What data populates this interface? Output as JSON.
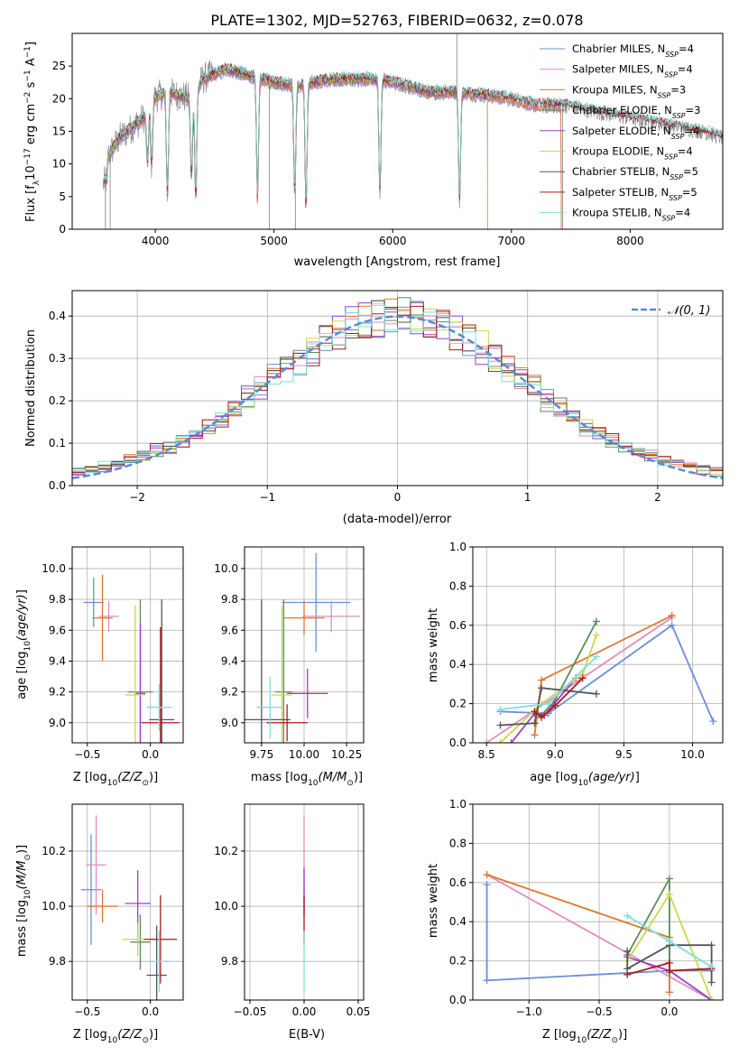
{
  "title": "PLATE=1302, MJD=52763, FIBERID=0632, z=0.078",
  "colors": {
    "chabrier_miles": "#6a8fd8",
    "salpeter_miles": "#e38bc2",
    "kroupa_miles": "#e0772a",
    "chabrier_elodie": "#5e8a5e",
    "salpeter_elodie": "#9b3fc8",
    "kroupa_elodie": "#c9d84a",
    "chabrier_stelib": "#555555",
    "salpeter_stelib": "#b01818",
    "kroupa_stelib": "#7fdde0",
    "data": "#808080",
    "grid": "#b0b0b0"
  },
  "legend": [
    {
      "key": "chabrier_miles",
      "text": "Chabrier MILES, N",
      "sub": "SSP",
      "tail": "=4"
    },
    {
      "key": "salpeter_miles",
      "text": "Salpeter MILES, N",
      "sub": "SSP",
      "tail": "=4"
    },
    {
      "key": "kroupa_miles",
      "text": "Kroupa MILES, N",
      "sub": "SSP",
      "tail": "=3"
    },
    {
      "key": "chabrier_elodie",
      "text": "Chabrier ELODIE, N",
      "sub": "SSP",
      "tail": "=3"
    },
    {
      "key": "salpeter_elodie",
      "text": "Salpeter ELODIE, N",
      "sub": "SSP",
      "tail": "=4"
    },
    {
      "key": "kroupa_elodie",
      "text": "Kroupa ELODIE, N",
      "sub": "SSP",
      "tail": "=4"
    },
    {
      "key": "chabrier_stelib",
      "text": "Chabrier STELIB, N",
      "sub": "SSP",
      "tail": "=5"
    },
    {
      "key": "salpeter_stelib",
      "text": "Salpeter STELIB, N",
      "sub": "SSP",
      "tail": "=5"
    },
    {
      "key": "kroupa_stelib",
      "text": "Kroupa STELIB, N",
      "sub": "SSP",
      "tail": "=4"
    }
  ],
  "labels": {
    "spec_xlabel": "wavelength [Angstrom, rest frame]",
    "spec_ylabel": "Flux [f",
    "spec_ylabel_sub": "λ",
    "spec_ylabel_mid": "10",
    "spec_ylabel_sup1": "−17",
    "spec_ylabel_mid2": " erg cm",
    "spec_ylabel_sup2": "−2",
    "spec_ylabel_mid3": " s",
    "spec_ylabel_sup3": "−1",
    "spec_ylabel_mid4": " A",
    "spec_ylabel_sup4": "−1",
    "spec_ylabel_end": "]",
    "hist_xlabel": "(data-model)/error",
    "hist_ylabel": "Normed distribution",
    "hist_legend": "𝒩(0, 1)",
    "age_label_pre": "age  [log",
    "age_label_sub": "10",
    "age_label_it": "(age/yr)",
    "age_label_end": "]",
    "z_label_pre": "Z [log",
    "z_label_sub": "10",
    "z_label_it": "(Z/Z",
    "z_label_sun": "⊙",
    "z_label_end": ")]",
    "mass_label_pre": "mass [log",
    "mass_label_sub": "10",
    "mass_label_it": "(M/M",
    "mass_label_sun": "⊙",
    "mass_label_end": ")]",
    "ebv_label": "E(B-V)",
    "mass_weight": "mass weight"
  },
  "chart_data": [
    {
      "name": "spectrum",
      "type": "line",
      "title": "PLATE=1302, MJD=52763, FIBERID=0632, z=0.078",
      "xlabel": "wavelength [Angstrom, rest frame]",
      "ylabel": "Flux [fλ10^-17 erg cm^-2 s^-1 A^-1]",
      "xlim": [
        3300,
        8780
      ],
      "ylim": [
        0,
        30
      ],
      "xticks": [
        4000,
        5000,
        6000,
        7000,
        8000
      ],
      "yticks": [
        0,
        5,
        10,
        15,
        20,
        25
      ],
      "grid": false,
      "legend": "upper right",
      "continuum": [
        [
          3560,
          10
        ],
        [
          3700,
          14
        ],
        [
          3900,
          17
        ],
        [
          3980,
          20
        ],
        [
          4100,
          21
        ],
        [
          4300,
          20
        ],
        [
          4400,
          23
        ],
        [
          4600,
          24.5
        ],
        [
          4800,
          23.5
        ],
        [
          5000,
          22.5
        ],
        [
          5200,
          22
        ],
        [
          5500,
          23
        ],
        [
          5800,
          23
        ],
        [
          6000,
          22.5
        ],
        [
          6300,
          21
        ],
        [
          6500,
          21
        ],
        [
          6800,
          20.5
        ],
        [
          7000,
          20
        ],
        [
          7200,
          19
        ],
        [
          7450,
          19
        ],
        [
          7700,
          18
        ],
        [
          8000,
          17
        ],
        [
          8300,
          16
        ],
        [
          8600,
          15
        ],
        [
          8780,
          14
        ]
      ]
    },
    {
      "name": "residuals",
      "type": "bar",
      "xlabel": "(data-model)/error",
      "ylabel": "Normed distribution",
      "xlim": [
        -2.5,
        2.5
      ],
      "ylim": [
        0,
        0.46
      ],
      "xticks": [
        -2,
        -1,
        0,
        1,
        2
      ],
      "yticks": [
        0.0,
        0.1,
        0.2,
        0.3,
        0.4
      ],
      "grid": true,
      "reference_curve": "N(0,1)",
      "legend": "upper right"
    },
    {
      "name": "age_vs_Z",
      "type": "scatter",
      "xlabel": "Z [log10(Z/Z⊙)]",
      "ylabel": "age  [log10(age/yr)]",
      "xlim": [
        -0.62,
        0.26
      ],
      "ylim": [
        8.87,
        10.14
      ],
      "xticks": [
        -0.5,
        0.0
      ],
      "yticks": [
        9.0,
        9.2,
        9.4,
        9.6,
        9.8,
        10.0
      ],
      "grid": true,
      "points": [
        {
          "key": "chabrier_miles",
          "x": -0.45,
          "xerr": 0.08,
          "y": 9.78,
          "yerr": 0.16
        },
        {
          "key": "salpeter_miles",
          "x": -0.33,
          "xerr": 0.08,
          "y": 9.69,
          "yerr": 0.1
        },
        {
          "key": "kroupa_miles",
          "x": -0.38,
          "xerr": 0.08,
          "y": 9.68,
          "yerr": 0.28
        },
        {
          "key": "chabrier_elodie",
          "x": -0.08,
          "xerr": 0.1,
          "y": 9.2,
          "yerr": 0.6
        },
        {
          "key": "salpeter_elodie",
          "x": -0.08,
          "xerr": 0.04,
          "y": 9.19,
          "yerr": 0.45
        },
        {
          "key": "kroupa_elodie",
          "x": -0.12,
          "xerr": 0.08,
          "y": 9.18,
          "yerr": 0.58
        },
        {
          "key": "chabrier_stelib",
          "x": 0.09,
          "xerr": 0.1,
          "y": 9.02,
          "yerr": 0.78
        },
        {
          "key": "salpeter_stelib",
          "x": 0.08,
          "xerr": 0.15,
          "y": 9.0,
          "yerr": 0.62
        },
        {
          "key": "kroupa_stelib",
          "x": 0.07,
          "xerr": 0.1,
          "y": 9.1,
          "yerr": 0.15
        }
      ]
    },
    {
      "name": "age_vs_mass",
      "type": "scatter",
      "xlabel": "mass [log10(M/M⊙)]",
      "ylabel": "",
      "xlim": [
        9.65,
        10.35
      ],
      "ylim": [
        8.87,
        10.14
      ],
      "xticks": [
        9.75,
        10.0,
        10.25
      ],
      "yticks": [
        9.0,
        9.2,
        9.4,
        9.6,
        9.8,
        10.0
      ],
      "grid": true,
      "points": [
        {
          "key": "chabrier_miles",
          "x": 10.07,
          "xerr": 0.2,
          "y": 9.78,
          "yerr": 0.32
        },
        {
          "key": "salpeter_miles",
          "x": 10.16,
          "xerr": 0.17,
          "y": 9.69,
          "yerr": 0.1
        },
        {
          "key": "kroupa_miles",
          "x": 10.0,
          "xerr": 0.12,
          "y": 9.68,
          "yerr": 0.11
        },
        {
          "key": "chabrier_elodie",
          "x": 9.88,
          "xerr": 0.05,
          "y": 9.2,
          "yerr": 0.6
        },
        {
          "key": "salpeter_elodie",
          "x": 10.02,
          "xerr": 0.12,
          "y": 9.19,
          "yerr": 0.16
        },
        {
          "key": "kroupa_elodie",
          "x": 9.87,
          "xerr": 0.06,
          "y": 9.18,
          "yerr": 0.58
        },
        {
          "key": "chabrier_stelib",
          "x": 9.75,
          "xerr": 0.17,
          "y": 9.02,
          "yerr": 0.78
        },
        {
          "key": "salpeter_stelib",
          "x": 9.9,
          "xerr": 0.12,
          "y": 9.0,
          "yerr": 0.12
        },
        {
          "key": "kroupa_stelib",
          "x": 9.8,
          "xerr": 0.08,
          "y": 9.1,
          "yerr": 0.2
        }
      ]
    },
    {
      "name": "weight_vs_age",
      "type": "line",
      "xlabel": "age  [log10(age/yr)]",
      "ylabel": "mass weight",
      "xlim": [
        8.4,
        10.22
      ],
      "ylim": [
        0,
        1
      ],
      "xticks": [
        8.5,
        9.0,
        9.5,
        10.0
      ],
      "yticks": [
        0.0,
        0.2,
        0.4,
        0.6,
        0.8,
        1.0
      ],
      "grid": true,
      "series": [
        {
          "key": "chabrier_miles",
          "points": [
            [
              8.6,
              0.16
            ],
            [
              8.95,
              0.15
            ],
            [
              9.85,
              0.6
            ],
            [
              10.15,
              0.11
            ]
          ]
        },
        {
          "key": "salpeter_miles",
          "points": [
            [
              8.5,
              0.0
            ],
            [
              9.85,
              0.64
            ]
          ]
        },
        {
          "key": "kroupa_miles",
          "points": [
            [
              8.85,
              0.04
            ],
            [
              8.9,
              0.32
            ],
            [
              9.85,
              0.65
            ]
          ]
        },
        {
          "key": "chabrier_elodie",
          "points": [
            [
              8.9,
              0.14
            ],
            [
              9.0,
              0.22
            ],
            [
              9.3,
              0.62
            ]
          ]
        },
        {
          "key": "salpeter_elodie",
          "points": [
            [
              8.68,
              0.0
            ],
            [
              8.85,
              0.15
            ],
            [
              8.92,
              0.14
            ],
            [
              9.15,
              0.33
            ]
          ]
        },
        {
          "key": "kroupa_elodie",
          "points": [
            [
              8.6,
              0.0
            ],
            [
              8.9,
              0.2
            ],
            [
              9.2,
              0.35
            ],
            [
              9.3,
              0.55
            ]
          ]
        },
        {
          "key": "chabrier_stelib",
          "points": [
            [
              8.6,
              0.09
            ],
            [
              8.85,
              0.1
            ],
            [
              8.9,
              0.28
            ],
            [
              9.3,
              0.25
            ]
          ]
        },
        {
          "key": "salpeter_stelib",
          "points": [
            [
              8.85,
              0.16
            ],
            [
              8.9,
              0.13
            ],
            [
              9.0,
              0.19
            ],
            [
              9.2,
              0.33
            ]
          ]
        },
        {
          "key": "kroupa_stelib",
          "points": [
            [
              8.6,
              0.17
            ],
            [
              8.95,
              0.2
            ],
            [
              9.3,
              0.44
            ]
          ]
        }
      ]
    },
    {
      "name": "mass_vs_Z",
      "type": "scatter",
      "xlabel": "Z [log10(Z/Z⊙)]",
      "ylabel": "mass [log10(M/M⊙)]",
      "xlim": [
        -0.62,
        0.26
      ],
      "ylim": [
        9.66,
        10.37
      ],
      "xticks": [
        -0.5,
        0.0
      ],
      "yticks": [
        9.8,
        10.0,
        10.2
      ],
      "grid": true,
      "points": [
        {
          "key": "chabrier_miles",
          "x": -0.47,
          "xerr": 0.08,
          "y": 10.06,
          "yerr": 0.2
        },
        {
          "key": "salpeter_miles",
          "x": -0.43,
          "xerr": 0.08,
          "y": 10.15,
          "yerr": 0.18
        },
        {
          "key": "kroupa_miles",
          "x": -0.38,
          "xerr": 0.12,
          "y": 10.0,
          "yerr": 0.06
        },
        {
          "key": "chabrier_elodie",
          "x": -0.08,
          "xerr": 0.08,
          "y": 9.87,
          "yerr": 0.1
        },
        {
          "key": "salpeter_elodie",
          "x": -0.1,
          "xerr": 0.1,
          "y": 10.01,
          "yerr": 0.12
        },
        {
          "key": "kroupa_elodie",
          "x": -0.1,
          "xerr": 0.12,
          "y": 9.88,
          "yerr": 0.06
        },
        {
          "key": "chabrier_stelib",
          "x": 0.05,
          "xerr": 0.08,
          "y": 9.75,
          "yerr": 0.18
        },
        {
          "key": "salpeter_stelib",
          "x": 0.08,
          "xerr": 0.13,
          "y": 9.88,
          "yerr": 0.16
        },
        {
          "key": "kroupa_stelib",
          "x": 0.07,
          "xerr": 0.08,
          "y": 9.8,
          "yerr": 0.11
        }
      ]
    },
    {
      "name": "mass_vs_ebv",
      "type": "scatter",
      "xlabel": "E(B-V)",
      "ylabel": "",
      "xlim": [
        -0.055,
        0.055
      ],
      "ylim": [
        9.66,
        10.37
      ],
      "xticks": [
        -0.05,
        0.0,
        0.05
      ],
      "yticks": [
        9.8,
        10.0,
        10.2
      ],
      "grid": true,
      "points": [
        {
          "key": "salpeter_miles",
          "x": 0.0,
          "xerr": 0.0,
          "y": 10.15,
          "yerr": 0.18
        },
        {
          "key": "salpeter_elodie",
          "x": 0.0,
          "xerr": 0.0,
          "y": 10.05,
          "yerr": 0.09
        },
        {
          "key": "salpeter_stelib",
          "x": 0.0,
          "xerr": 0.0,
          "y": 9.95,
          "yerr": 0.09
        },
        {
          "key": "kroupa_stelib",
          "x": 0.0,
          "xerr": 0.0,
          "y": 9.8,
          "yerr": 0.11
        }
      ]
    },
    {
      "name": "weight_vs_Z",
      "type": "line",
      "xlabel": "Z [log10(Z/Z⊙)]",
      "ylabel": "mass weight",
      "xlim": [
        -1.4,
        0.38
      ],
      "ylim": [
        0,
        1
      ],
      "xticks": [
        -1.0,
        -0.5,
        0.0
      ],
      "yticks": [
        0.0,
        0.2,
        0.4,
        0.6,
        0.8,
        1.0
      ],
      "grid": true,
      "series": [
        {
          "key": "chabrier_miles",
          "points": [
            [
              -1.3,
              0.59
            ],
            [
              -1.3,
              0.1
            ],
            [
              0.0,
              0.15
            ],
            [
              0.3,
              0.15
            ]
          ]
        },
        {
          "key": "salpeter_miles",
          "points": [
            [
              -1.3,
              0.64
            ],
            [
              0.3,
              0.0
            ]
          ]
        },
        {
          "key": "kroupa_miles",
          "points": [
            [
              -1.3,
              0.64
            ],
            [
              0.0,
              0.32
            ],
            [
              0.0,
              0.04
            ]
          ]
        },
        {
          "key": "chabrier_elodie",
          "points": [
            [
              -0.3,
              0.23
            ],
            [
              0.0,
              0.62
            ],
            [
              0.0,
              0.14
            ]
          ]
        },
        {
          "key": "salpeter_elodie",
          "points": [
            [
              -0.3,
              0.22
            ],
            [
              0.0,
              0.15
            ],
            [
              0.3,
              0.0
            ]
          ]
        },
        {
          "key": "kroupa_elodie",
          "points": [
            [
              -0.3,
              0.2
            ],
            [
              0.0,
              0.54
            ],
            [
              0.3,
              0.0
            ]
          ]
        },
        {
          "key": "chabrier_stelib",
          "points": [
            [
              -0.3,
              0.25
            ],
            [
              -0.3,
              0.16
            ],
            [
              0.0,
              0.28
            ],
            [
              0.3,
              0.28
            ],
            [
              0.3,
              0.09
            ]
          ]
        },
        {
          "key": "salpeter_stelib",
          "points": [
            [
              -0.3,
              0.13
            ],
            [
              0.0,
              0.19
            ],
            [
              0.0,
              0.15
            ],
            [
              0.3,
              0.16
            ]
          ]
        },
        {
          "key": "kroupa_stelib",
          "points": [
            [
              -0.3,
              0.43
            ],
            [
              0.0,
              0.3
            ],
            [
              0.3,
              0.17
            ]
          ]
        }
      ]
    }
  ]
}
